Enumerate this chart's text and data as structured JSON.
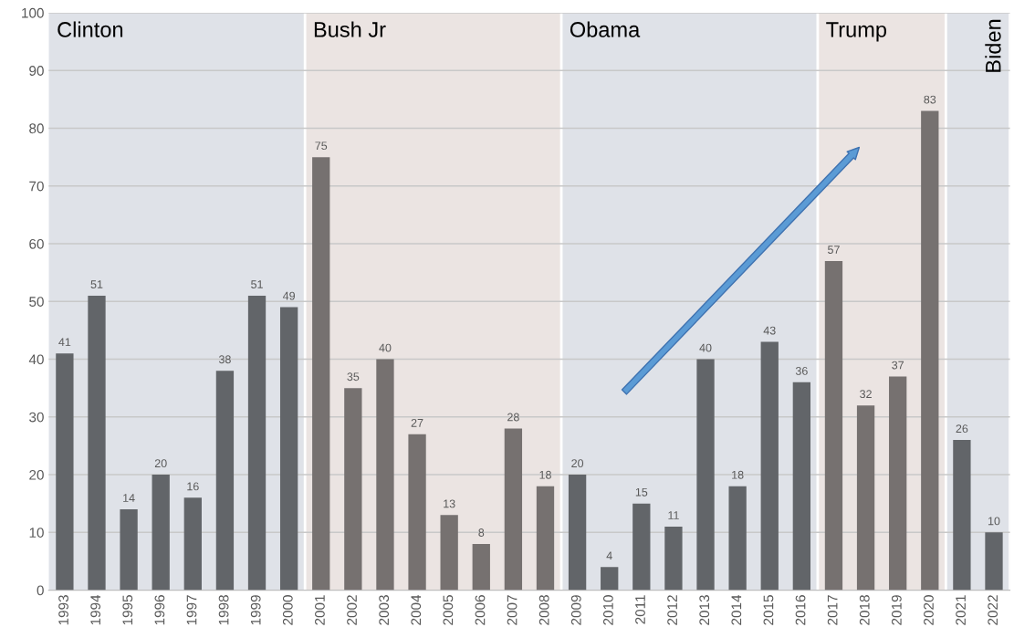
{
  "chart_data": {
    "type": "bar",
    "categories": [
      "1993",
      "1994",
      "1995",
      "1996",
      "1997",
      "1998",
      "1999",
      "2000",
      "2001",
      "2002",
      "2003",
      "2004",
      "2005",
      "2006",
      "2007",
      "2008",
      "2009",
      "2010",
      "2011",
      "2012",
      "2013",
      "2014",
      "2015",
      "2016",
      "2017",
      "2018",
      "2019",
      "2020",
      "2021",
      "2022"
    ],
    "values": [
      41,
      51,
      14,
      20,
      16,
      38,
      51,
      49,
      75,
      35,
      40,
      27,
      13,
      8,
      28,
      18,
      20,
      4,
      15,
      11,
      40,
      18,
      43,
      36,
      57,
      32,
      37,
      83,
      26,
      10
    ],
    "colors": [
      "#626569",
      "#626569",
      "#626569",
      "#626569",
      "#626569",
      "#626569",
      "#626569",
      "#626569",
      "#767170",
      "#767170",
      "#767170",
      "#767170",
      "#767170",
      "#767170",
      "#767170",
      "#767170",
      "#626569",
      "#626569",
      "#626569",
      "#626569",
      "#626569",
      "#626569",
      "#626569",
      "#626569",
      "#767170",
      "#767170",
      "#767170",
      "#767170",
      "#626569",
      "#626569"
    ],
    "ylim": [
      0,
      100
    ],
    "yticks": [
      0,
      10,
      20,
      30,
      40,
      50,
      60,
      70,
      80,
      90,
      100
    ],
    "grid": "y",
    "data_labels": true,
    "bands": [
      {
        "axis": "x",
        "from": "1993",
        "to": "2000",
        "label": "Clinton",
        "color": "#dfe2e8"
      },
      {
        "axis": "x",
        "from": "2001",
        "to": "2008",
        "label": "Bush Jr",
        "color": "#ebe4e2"
      },
      {
        "axis": "x",
        "from": "2009",
        "to": "2016",
        "label": "Obama",
        "color": "#dfe2e8"
      },
      {
        "axis": "x",
        "from": "2017",
        "to": "2020",
        "label": "Trump",
        "color": "#ebe4e2"
      },
      {
        "axis": "x",
        "from": "2021",
        "to": "2022",
        "label": "Biden",
        "color": "#dfe2e8"
      }
    ]
  }
}
